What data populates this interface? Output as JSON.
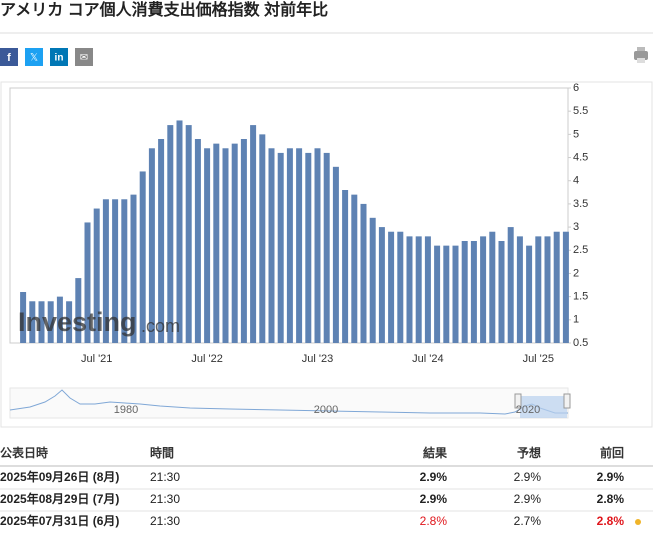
{
  "header": {
    "title": "アメリカ コア個人消費支出価格指数 対前年比",
    "share": [
      "f",
      "𝕏",
      "in",
      "✉"
    ]
  },
  "chart_data": {
    "type": "bar",
    "color": "#5e82b3",
    "categories": [
      null,
      null,
      null,
      null,
      null,
      null,
      null,
      null,
      "Jul '21",
      null,
      null,
      null,
      null,
      null,
      null,
      null,
      null,
      null,
      null,
      null,
      "Jul '22",
      null,
      null,
      null,
      null,
      null,
      null,
      null,
      null,
      null,
      null,
      null,
      "Jul '23",
      null,
      null,
      null,
      null,
      null,
      null,
      null,
      null,
      null,
      null,
      null,
      "Jul '24",
      null,
      null,
      null,
      null,
      null,
      null,
      null,
      null,
      null,
      null,
      null,
      "Jul '25",
      null,
      null,
      null
    ],
    "values": [
      1.6,
      1.4,
      1.4,
      1.4,
      1.5,
      1.4,
      1.9,
      3.1,
      3.4,
      3.6,
      3.6,
      3.6,
      3.7,
      4.2,
      4.7,
      4.9,
      5.2,
      5.3,
      5.2,
      4.9,
      4.7,
      4.8,
      4.7,
      4.8,
      4.9,
      5.2,
      5.0,
      4.7,
      4.6,
      4.7,
      4.7,
      4.6,
      4.7,
      4.6,
      4.3,
      3.8,
      3.7,
      3.5,
      3.2,
      3.0,
      2.9,
      2.9,
      2.8,
      2.8,
      2.8,
      2.6,
      2.6,
      2.6,
      2.7,
      2.7,
      2.8,
      2.9,
      2.7,
      3.0,
      2.8,
      2.6,
      2.8,
      2.8,
      2.9,
      2.9
    ],
    "ylim": [
      0.5,
      6
    ],
    "yticks": [
      0.5,
      1,
      1.5,
      2,
      2.5,
      3,
      3.5,
      4,
      4.5,
      5,
      5.5,
      6
    ],
    "watermark": "Investing",
    "watermark_suffix": ".com",
    "navigator_labels": [
      "1980",
      "2000",
      "2020"
    ]
  },
  "table": {
    "header": [
      "公表日時",
      "時間",
      "結果",
      "予想",
      "前回"
    ],
    "rows": [
      [
        "2025年09月26日 (8月)",
        "21:30",
        "2.9%",
        "2.9%",
        "2.9%"
      ],
      [
        "2025年08月29日 (7月)",
        "21:30",
        "2.9%",
        "2.9%",
        "2.8%"
      ],
      [
        "2025年07月31日 (6月)",
        "21:30",
        {
          "text": "2.8%",
          "color": "#e0161c"
        },
        "2.7%",
        {
          "text": "2.8%",
          "color": "#e0161c"
        }
      ]
    ]
  }
}
